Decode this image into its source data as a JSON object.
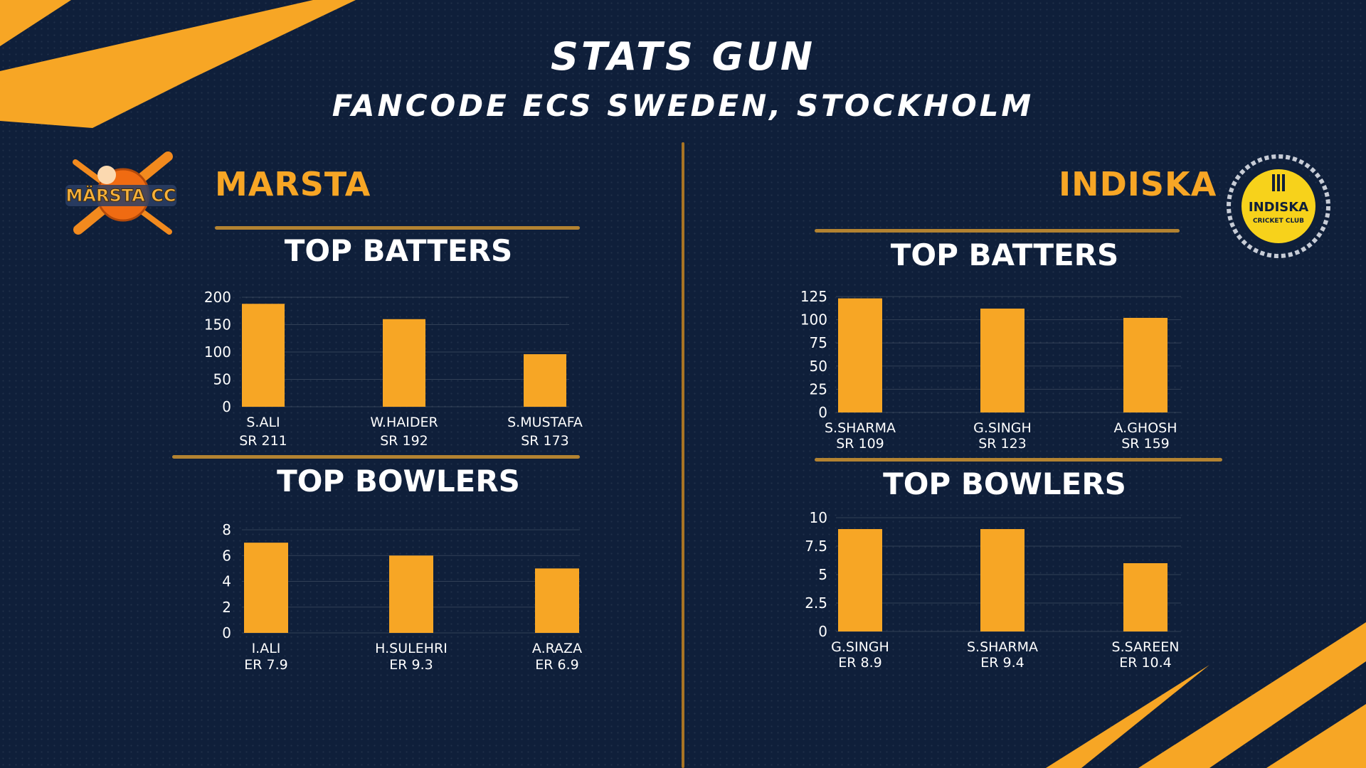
{
  "header": {
    "title": "STATS GUN",
    "subtitle": "FANCODE ECS SWEDEN, STOCKHOLM"
  },
  "colors": {
    "background": "#0f1f3a",
    "accent": "#f7a625",
    "divider": "#b38331",
    "text": "#ffffff"
  },
  "teams": {
    "left": {
      "name": "MARSTA",
      "logo_text": "MÄRSTA CC"
    },
    "right": {
      "name": "INDISKA",
      "logo_text": "INDISKA",
      "logo_subtext": "CRICKET CLUB"
    }
  },
  "sections": {
    "left_batters": "TOP BATTERS",
    "left_bowlers": "TOP BOWLERS",
    "right_batters": "TOP BATTERS",
    "right_bowlers": "TOP BOWLERS"
  },
  "chart_data": [
    {
      "id": "marsta-batters",
      "type": "bar",
      "categories": [
        "S.ALI",
        "W.HAIDER",
        "S.MUSTAFA"
      ],
      "sublabels": [
        "SR 211",
        "SR 192",
        "SR 173"
      ],
      "values": [
        188,
        160,
        96
      ],
      "yticks": [
        0,
        50,
        100,
        150,
        200
      ],
      "ylim": [
        0,
        200
      ]
    },
    {
      "id": "marsta-bowlers",
      "type": "bar",
      "categories": [
        "I.ALI",
        "H.SULEHRI",
        "A.RAZA"
      ],
      "sublabels": [
        "ER 7.9",
        "ER 9.3",
        "ER 6.9"
      ],
      "values": [
        7,
        6,
        5
      ],
      "yticks": [
        0,
        2,
        4,
        6,
        8
      ],
      "ylim": [
        0,
        8
      ]
    },
    {
      "id": "indiska-batters",
      "type": "bar",
      "categories": [
        "S.SHARMA",
        "G.SINGH",
        "A.GHOSH"
      ],
      "sublabels": [
        "SR 109",
        "SR 123",
        "SR 159"
      ],
      "values": [
        123,
        112,
        102
      ],
      "yticks": [
        0,
        25,
        50,
        75,
        100,
        125
      ],
      "ylim": [
        0,
        125
      ]
    },
    {
      "id": "indiska-bowlers",
      "type": "bar",
      "categories": [
        "G.SINGH",
        "S.SHARMA",
        "S.SAREEN"
      ],
      "sublabels": [
        "ER 8.9",
        "ER 9.4",
        "ER 10.4"
      ],
      "values": [
        9,
        9,
        6
      ],
      "yticks": [
        0,
        2.5,
        5,
        7.5,
        10
      ],
      "ylim": [
        0,
        10
      ]
    }
  ]
}
